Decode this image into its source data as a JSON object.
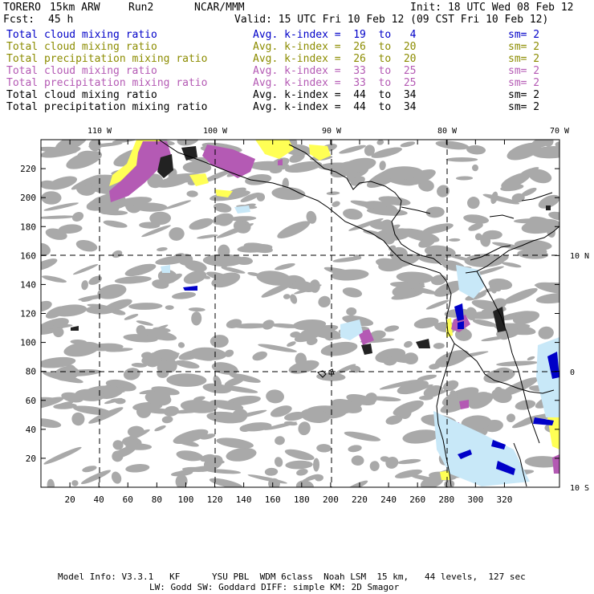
{
  "header": {
    "model": "TORERO",
    "res": "15km ARW",
    "run": "Run2",
    "org": "NCAR/MMM",
    "init": "Init: 18 UTC Wed 08 Feb 12",
    "fcst_label": "Fcst:",
    "fcst_value": "45 h",
    "valid": "Valid: 15 UTC Fri 10 Feb 12 (09 CST Fri 10 Feb 12)"
  },
  "legend": [
    {
      "field": "Total cloud mixing ratio",
      "kindex": "Avg. k-index =  19  to   4",
      "sm": "sm= 2",
      "color": "#0000c8"
    },
    {
      "field": "Total cloud mixing ratio",
      "kindex": "Avg. k-index =  26  to  20",
      "sm": "sm= 2",
      "color": "#8c8c00"
    },
    {
      "field": "Total precipitation mixing ratio",
      "kindex": "Avg. k-index =  26  to  20",
      "sm": "sm= 2",
      "color": "#8c8c00"
    },
    {
      "field": "Total cloud mixing ratio",
      "kindex": "Avg. k-index =  33  to  25",
      "sm": "sm= 2",
      "color": "#b45ab4"
    },
    {
      "field": "Total precipitation mixing ratio",
      "kindex": "Avg. k-index =  33  to  25",
      "sm": "sm= 2",
      "color": "#b45ab4"
    },
    {
      "field": "Total cloud mixing ratio",
      "kindex": "Avg. k-index =  44  to  34",
      "sm": "sm= 2",
      "color": "#000000"
    },
    {
      "field": "Total precipitation mixing ratio",
      "kindex": "Avg. k-index =  44  to  34",
      "sm": "sm= 2",
      "color": "#000000"
    }
  ],
  "map": {
    "lon_labels": [
      "110 W",
      "100 W",
      "90 W",
      "80 W",
      "70 W"
    ],
    "lat_labels": [
      "10 N",
      "0",
      "10 S"
    ],
    "x_ticks": [
      "20",
      "40",
      "60",
      "80",
      "100",
      "120",
      "140",
      "160",
      "180",
      "200",
      "220",
      "240",
      "260",
      "280",
      "300",
      "320"
    ],
    "y_ticks": [
      "20",
      "40",
      "60",
      "80",
      "100",
      "120",
      "140",
      "160",
      "180",
      "200",
      "220"
    ],
    "colors": {
      "gray": "#a9a9a9",
      "yellow": "#ffff55",
      "magenta": "#b45ab4",
      "lightblue": "#c8e8f8",
      "blue": "#0000c8",
      "black": "#222222"
    }
  },
  "footer": {
    "line1": "Model Info: V3.3.1   KF      YSU PBL  WDM 6class  Noah LSM  15 km,   44 levels,  127 sec",
    "line2": "LW: Godd SW: Goddard DIFF: simple KM: 2D Smagor"
  }
}
